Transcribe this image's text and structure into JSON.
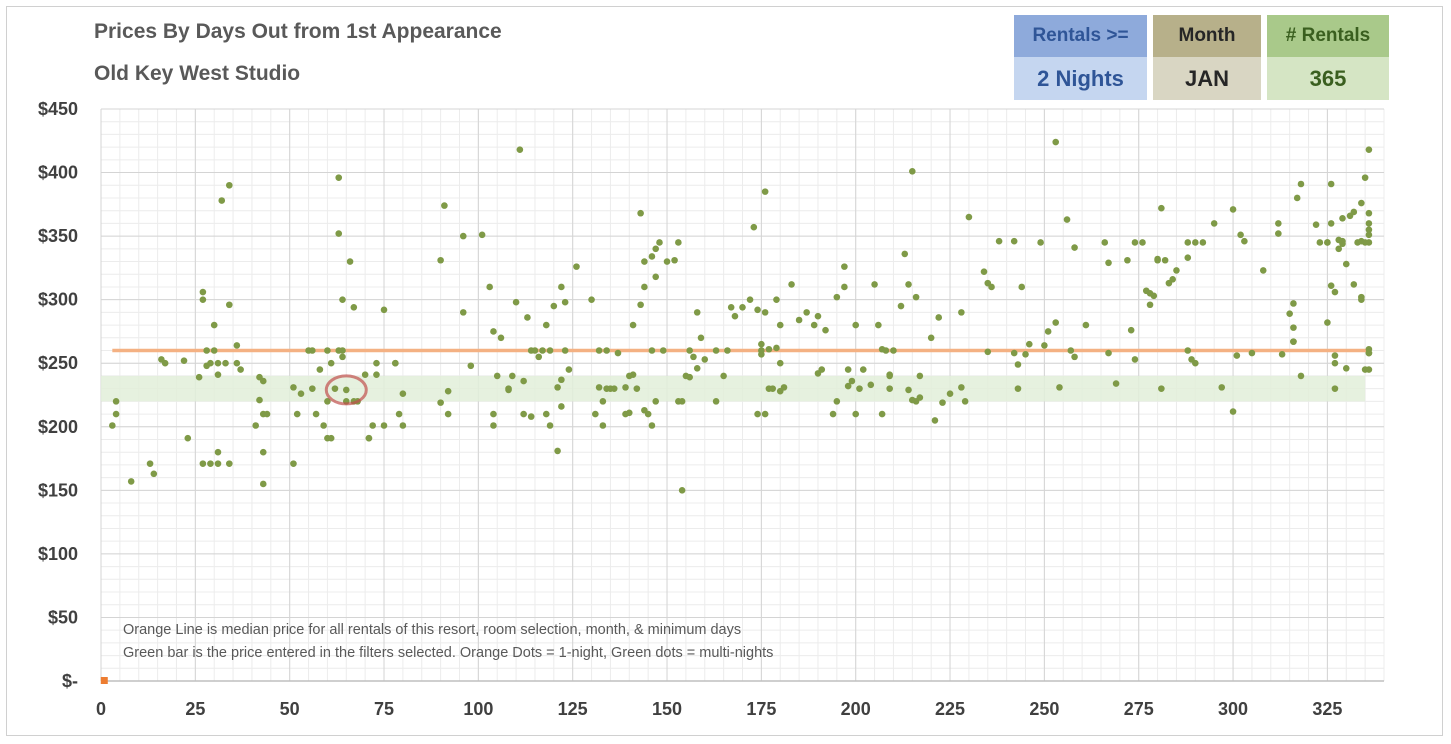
{
  "title": "Prices By Days Out from 1st Appearance",
  "subtitle": "Old Key West Studio",
  "filters": {
    "rentals": {
      "header": "Rentals >=",
      "value": "2 Nights"
    },
    "month": {
      "header": "Month",
      "value": "JAN"
    },
    "count": {
      "header": "# Rentals",
      "value": "365"
    }
  },
  "notes": {
    "line1": "Orange Line is median price for all rentals of this resort, room selection, month, & minimum days",
    "line2": "Green bar is the price entered in the filters selected. Orange Dots = 1-night, Green dots = multi-nights"
  },
  "colors": {
    "dot": "#7f9a47",
    "median_line": "#f4b183",
    "band": "#e2efd9",
    "highlight": "#c0504d",
    "orange_dot": "#ed7d31"
  },
  "chart_data": {
    "type": "scatter",
    "xlim": [
      0,
      340
    ],
    "ylim": [
      0,
      450
    ],
    "x_ticks": [
      0,
      25,
      50,
      75,
      100,
      125,
      150,
      175,
      200,
      225,
      250,
      275,
      300,
      325
    ],
    "x_tick_labels": [
      "0",
      "25",
      "50",
      "75",
      "100",
      "125",
      "150",
      "175",
      "200",
      "225",
      "250",
      "275",
      "300",
      "325"
    ],
    "y_ticks": [
      0,
      50,
      100,
      150,
      200,
      250,
      300,
      350,
      400,
      450
    ],
    "y_tick_labels": [
      "$-",
      "$50",
      "$100",
      "$150",
      "$200",
      "$250",
      "$300",
      "$350",
      "$400",
      "$450"
    ],
    "grid": true,
    "median_price": 260,
    "band": [
      220,
      240
    ],
    "highlight_point": [
      65,
      229
    ],
    "orange_points": [
      [
        1,
        0
      ]
    ],
    "points": [
      [
        3,
        201
      ],
      [
        4,
        210
      ],
      [
        4,
        220
      ],
      [
        8,
        157
      ],
      [
        13,
        171
      ],
      [
        14,
        163
      ],
      [
        16,
        253
      ],
      [
        17,
        250
      ],
      [
        22,
        252
      ],
      [
        23,
        191
      ],
      [
        26,
        239
      ],
      [
        27,
        171
      ],
      [
        27,
        300
      ],
      [
        27,
        306
      ],
      [
        28,
        260
      ],
      [
        28,
        248
      ],
      [
        29,
        250
      ],
      [
        29,
        171
      ],
      [
        30,
        260
      ],
      [
        30,
        280
      ],
      [
        31,
        250
      ],
      [
        31,
        241
      ],
      [
        31,
        180
      ],
      [
        31,
        171
      ],
      [
        32,
        378
      ],
      [
        33,
        250
      ],
      [
        34,
        390
      ],
      [
        34,
        296
      ],
      [
        34,
        171
      ],
      [
        36,
        264
      ],
      [
        36,
        250
      ],
      [
        37,
        245
      ],
      [
        41,
        201
      ],
      [
        42,
        239
      ],
      [
        42,
        221
      ],
      [
        43,
        210
      ],
      [
        43,
        236
      ],
      [
        43,
        155
      ],
      [
        43,
        180
      ],
      [
        44,
        210
      ],
      [
        51,
        231
      ],
      [
        51,
        171
      ],
      [
        52,
        210
      ],
      [
        53,
        226
      ],
      [
        55,
        260
      ],
      [
        56,
        260
      ],
      [
        56,
        230
      ],
      [
        57,
        210
      ],
      [
        58,
        245
      ],
      [
        59,
        201
      ],
      [
        60,
        191
      ],
      [
        60,
        220
      ],
      [
        60,
        260
      ],
      [
        61,
        191
      ],
      [
        61,
        250
      ],
      [
        62,
        230
      ],
      [
        63,
        260
      ],
      [
        63,
        396
      ],
      [
        63,
        352
      ],
      [
        64,
        300
      ],
      [
        64,
        255
      ],
      [
        64,
        260
      ],
      [
        65,
        220
      ],
      [
        65,
        229
      ],
      [
        66,
        330
      ],
      [
        67,
        294
      ],
      [
        67,
        220
      ],
      [
        68,
        220
      ],
      [
        70,
        241
      ],
      [
        71,
        191
      ],
      [
        71,
        191
      ],
      [
        72,
        201
      ],
      [
        73,
        250
      ],
      [
        73,
        241
      ],
      [
        75,
        201
      ],
      [
        75,
        292
      ],
      [
        78,
        250
      ],
      [
        78,
        250
      ],
      [
        79,
        210
      ],
      [
        80,
        226
      ],
      [
        80,
        201
      ],
      [
        90,
        331
      ],
      [
        90,
        219
      ],
      [
        91,
        374
      ],
      [
        92,
        210
      ],
      [
        92,
        228
      ],
      [
        96,
        350
      ],
      [
        96,
        290
      ],
      [
        98,
        248
      ],
      [
        101,
        351
      ],
      [
        103,
        310
      ],
      [
        104,
        275
      ],
      [
        104,
        210
      ],
      [
        104,
        201
      ],
      [
        105,
        240
      ],
      [
        106,
        270
      ],
      [
        108,
        229
      ],
      [
        108,
        230
      ],
      [
        109,
        240
      ],
      [
        110,
        298
      ],
      [
        111,
        418
      ],
      [
        112,
        210
      ],
      [
        112,
        236
      ],
      [
        113,
        286
      ],
      [
        114,
        260
      ],
      [
        114,
        208
      ],
      [
        115,
        260
      ],
      [
        116,
        255
      ],
      [
        117,
        260
      ],
      [
        118,
        210
      ],
      [
        118,
        280
      ],
      [
        119,
        201
      ],
      [
        119,
        260
      ],
      [
        120,
        295
      ],
      [
        121,
        181
      ],
      [
        121,
        231
      ],
      [
        122,
        216
      ],
      [
        122,
        310
      ],
      [
        122,
        237
      ],
      [
        123,
        298
      ],
      [
        123,
        260
      ],
      [
        124,
        245
      ],
      [
        126,
        326
      ],
      [
        130,
        300
      ],
      [
        131,
        210
      ],
      [
        132,
        260
      ],
      [
        132,
        231
      ],
      [
        133,
        201
      ],
      [
        133,
        220
      ],
      [
        134,
        230
      ],
      [
        134,
        260
      ],
      [
        135,
        230
      ],
      [
        136,
        230
      ],
      [
        137,
        258
      ],
      [
        139,
        231
      ],
      [
        139,
        210
      ],
      [
        140,
        211
      ],
      [
        140,
        240
      ],
      [
        141,
        280
      ],
      [
        141,
        241
      ],
      [
        142,
        230
      ],
      [
        143,
        368
      ],
      [
        143,
        296
      ],
      [
        144,
        310
      ],
      [
        144,
        330
      ],
      [
        144,
        213
      ],
      [
        145,
        210
      ],
      [
        146,
        201
      ],
      [
        146,
        260
      ],
      [
        146,
        334
      ],
      [
        147,
        318
      ],
      [
        147,
        220
      ],
      [
        147,
        340
      ],
      [
        148,
        345
      ],
      [
        149,
        260
      ],
      [
        150,
        330
      ],
      [
        152,
        331
      ],
      [
        153,
        220
      ],
      [
        153,
        345
      ],
      [
        154,
        220
      ],
      [
        154,
        150
      ],
      [
        155,
        240
      ],
      [
        156,
        239
      ],
      [
        156,
        260
      ],
      [
        157,
        255
      ],
      [
        158,
        246
      ],
      [
        158,
        290
      ],
      [
        159,
        270
      ],
      [
        160,
        253
      ],
      [
        163,
        220
      ],
      [
        163,
        260
      ],
      [
        165,
        240
      ],
      [
        166,
        260
      ],
      [
        167,
        294
      ],
      [
        168,
        287
      ],
      [
        170,
        294
      ],
      [
        172,
        300
      ],
      [
        173,
        357
      ],
      [
        174,
        292
      ],
      [
        174,
        210
      ],
      [
        175,
        265
      ],
      [
        175,
        260
      ],
      [
        175,
        257
      ],
      [
        176,
        210
      ],
      [
        176,
        385
      ],
      [
        176,
        290
      ],
      [
        177,
        261
      ],
      [
        177,
        230
      ],
      [
        178,
        230
      ],
      [
        179,
        300
      ],
      [
        179,
        262
      ],
      [
        180,
        280
      ],
      [
        180,
        228
      ],
      [
        180,
        250
      ],
      [
        181,
        231
      ],
      [
        183,
        312
      ],
      [
        185,
        284
      ],
      [
        187,
        290
      ],
      [
        189,
        280
      ],
      [
        190,
        242
      ],
      [
        190,
        287
      ],
      [
        191,
        245
      ],
      [
        192,
        276
      ],
      [
        194,
        210
      ],
      [
        195,
        302
      ],
      [
        195,
        220
      ],
      [
        197,
        326
      ],
      [
        197,
        310
      ],
      [
        198,
        232
      ],
      [
        198,
        245
      ],
      [
        199,
        236
      ],
      [
        200,
        280
      ],
      [
        200,
        210
      ],
      [
        201,
        230
      ],
      [
        202,
        245
      ],
      [
        204,
        233
      ],
      [
        205,
        312
      ],
      [
        206,
        280
      ],
      [
        207,
        261
      ],
      [
        207,
        210
      ],
      [
        208,
        260
      ],
      [
        209,
        240
      ],
      [
        209,
        230
      ],
      [
        209,
        241
      ],
      [
        210,
        260
      ],
      [
        212,
        295
      ],
      [
        213,
        336
      ],
      [
        214,
        229
      ],
      [
        214,
        312
      ],
      [
        215,
        401
      ],
      [
        215,
        221
      ],
      [
        216,
        302
      ],
      [
        216,
        220
      ],
      [
        217,
        240
      ],
      [
        217,
        223
      ],
      [
        220,
        270
      ],
      [
        221,
        205
      ],
      [
        222,
        286
      ],
      [
        223,
        219
      ],
      [
        225,
        226
      ],
      [
        228,
        290
      ],
      [
        228,
        231
      ],
      [
        229,
        220
      ],
      [
        230,
        365
      ],
      [
        234,
        322
      ],
      [
        235,
        259
      ],
      [
        235,
        313
      ],
      [
        236,
        310
      ],
      [
        238,
        346
      ],
      [
        242,
        346
      ],
      [
        242,
        258
      ],
      [
        243,
        249
      ],
      [
        243,
        230
      ],
      [
        244,
        310
      ],
      [
        245,
        257
      ],
      [
        246,
        265
      ],
      [
        249,
        345
      ],
      [
        250,
        264
      ],
      [
        251,
        275
      ],
      [
        253,
        424
      ],
      [
        253,
        282
      ],
      [
        254,
        231
      ],
      [
        256,
        363
      ],
      [
        257,
        260
      ],
      [
        258,
        255
      ],
      [
        258,
        341
      ],
      [
        261,
        280
      ],
      [
        266,
        345
      ],
      [
        267,
        258
      ],
      [
        267,
        329
      ],
      [
        269,
        234
      ],
      [
        272,
        331
      ],
      [
        273,
        276
      ],
      [
        274,
        253
      ],
      [
        274,
        345
      ],
      [
        276,
        345
      ],
      [
        277,
        307
      ],
      [
        278,
        296
      ],
      [
        278,
        305
      ],
      [
        279,
        303
      ],
      [
        280,
        331
      ],
      [
        280,
        332
      ],
      [
        281,
        230
      ],
      [
        281,
        372
      ],
      [
        282,
        331
      ],
      [
        283,
        313
      ],
      [
        284,
        316
      ],
      [
        285,
        323
      ],
      [
        288,
        333
      ],
      [
        288,
        345
      ],
      [
        288,
        260
      ],
      [
        289,
        253
      ],
      [
        290,
        345
      ],
      [
        290,
        250
      ],
      [
        292,
        345
      ],
      [
        295,
        360
      ],
      [
        297,
        231
      ],
      [
        300,
        371
      ],
      [
        300,
        212
      ],
      [
        301,
        256
      ],
      [
        302,
        351
      ],
      [
        303,
        346
      ],
      [
        305,
        258
      ],
      [
        308,
        323
      ],
      [
        312,
        352
      ],
      [
        312,
        360
      ],
      [
        313,
        257
      ],
      [
        315,
        289
      ],
      [
        316,
        297
      ],
      [
        316,
        278
      ],
      [
        316,
        267
      ],
      [
        316,
        267
      ],
      [
        317,
        380
      ],
      [
        318,
        240
      ],
      [
        318,
        391
      ],
      [
        322,
        359
      ],
      [
        323,
        345
      ],
      [
        325,
        282
      ],
      [
        325,
        345
      ],
      [
        325,
        345
      ],
      [
        326,
        311
      ],
      [
        326,
        360
      ],
      [
        326,
        391
      ],
      [
        327,
        306
      ],
      [
        327,
        256
      ],
      [
        327,
        230
      ],
      [
        327,
        250
      ],
      [
        328,
        340
      ],
      [
        328,
        347
      ],
      [
        329,
        364
      ],
      [
        329,
        344
      ],
      [
        329,
        346
      ],
      [
        330,
        328
      ],
      [
        330,
        246
      ],
      [
        331,
        366
      ],
      [
        332,
        312
      ],
      [
        332,
        369
      ],
      [
        333,
        345
      ],
      [
        334,
        376
      ],
      [
        334,
        300
      ],
      [
        334,
        302
      ],
      [
        334,
        346
      ],
      [
        335,
        345
      ],
      [
        335,
        245
      ],
      [
        335,
        396
      ],
      [
        336,
        355
      ],
      [
        336,
        360
      ],
      [
        336,
        261
      ],
      [
        336,
        258
      ],
      [
        336,
        258
      ],
      [
        336,
        351
      ],
      [
        336,
        418
      ],
      [
        336,
        368
      ],
      [
        336,
        345
      ],
      [
        336,
        245
      ]
    ]
  }
}
